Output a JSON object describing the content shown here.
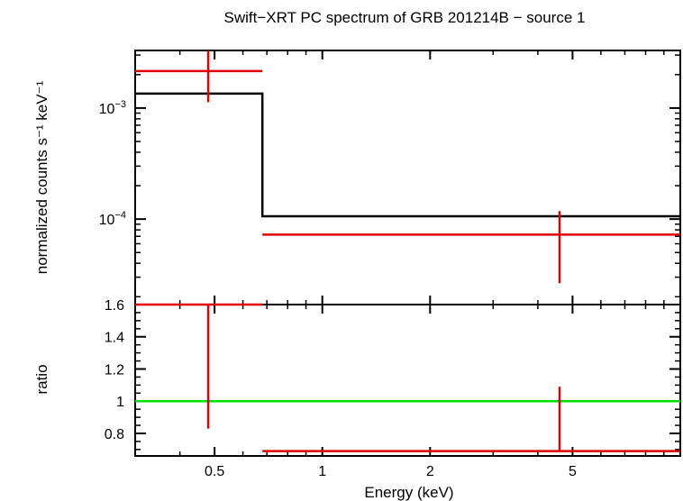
{
  "chart_data": [
    {
      "type": "line",
      "title": "Swift−XRT PC spectrum of GRB 201214B − source 1",
      "ylabel": "normalized counts s⁻¹ keV⁻¹",
      "xlabel": "",
      "xscale": "log",
      "yscale": "log",
      "xlim": [
        0.3,
        10
      ],
      "ylim": [
        1.7e-05,
        0.0033
      ],
      "y_tick_labels": [
        {
          "value": 0.001,
          "base": "10",
          "exp": "−3"
        },
        {
          "value": 0.0001,
          "base": "10",
          "exp": "−4"
        }
      ],
      "series": [
        {
          "kind": "model-step",
          "color": "#000000",
          "steps": [
            {
              "x0": 0.3,
              "x1": 0.68,
              "y": 0.00135
            },
            {
              "x0": 0.68,
              "x1": 10,
              "y": 0.000106
            }
          ]
        },
        {
          "kind": "data-errorbars",
          "color": "#e00000",
          "points": [
            {
              "x": 0.48,
              "xlo": 0.3,
              "xhi": 0.68,
              "y": 0.00215,
              "ylo": 0.00113,
              "yhi": 0.0033
            },
            {
              "x": 4.6,
              "xlo": 0.68,
              "xhi": 10,
              "y": 7.25e-05,
              "ylo": 2.65e-05,
              "yhi": 0.000118
            }
          ]
        }
      ]
    },
    {
      "type": "scatter",
      "ylabel": "ratio",
      "xlabel": "Energy (keV)",
      "xscale": "log",
      "xlim": [
        0.3,
        10
      ],
      "ylim": [
        0.66,
        1.6
      ],
      "x_ticks": [
        0.5,
        1,
        2,
        5
      ],
      "x_tick_labels": [
        "0.5",
        "1",
        "2",
        "5"
      ],
      "y_ticks": [
        0.8,
        1,
        1.2,
        1.4,
        1.6
      ],
      "y_tick_labels": [
        "0.8",
        "1",
        "1.2",
        "1.4",
        "1.6"
      ],
      "reference_line": {
        "y": 1,
        "color": "#00e000"
      },
      "series": [
        {
          "kind": "data-errorbars",
          "color": "#e00000",
          "points": [
            {
              "x": 0.48,
              "xlo": 0.3,
              "xhi": 0.68,
              "y": 1.6,
              "ylo": 0.83,
              "yhi": 1.6
            },
            {
              "x": 4.6,
              "xlo": 0.68,
              "xhi": 10,
              "y": 0.69,
              "ylo": 0.69,
              "yhi": 1.09
            }
          ]
        }
      ]
    }
  ]
}
